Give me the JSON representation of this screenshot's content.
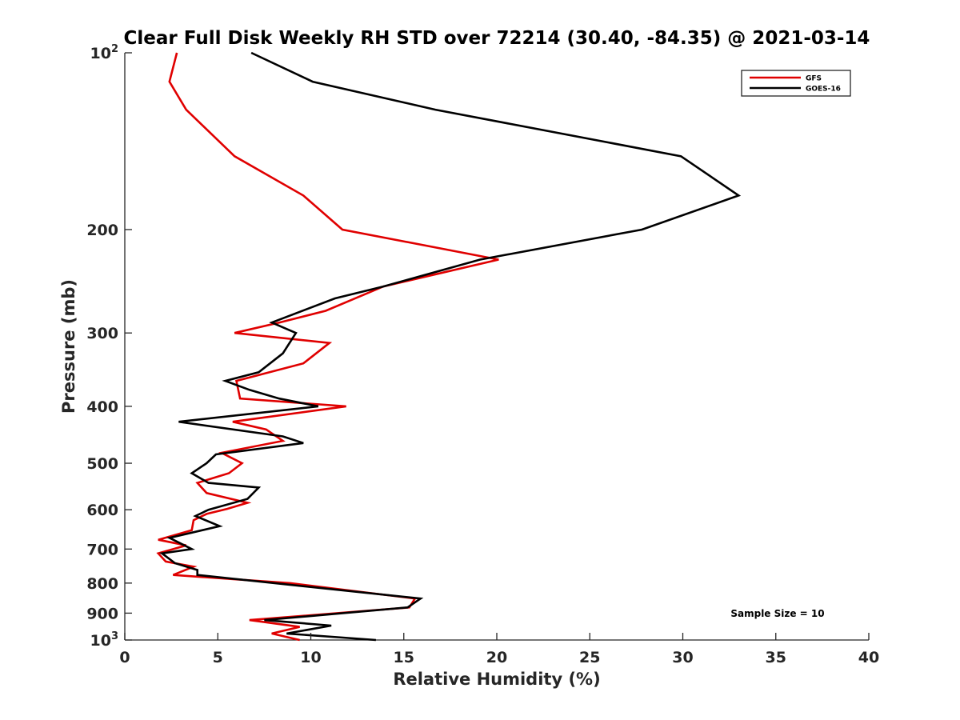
{
  "chart_data": {
    "type": "line",
    "title": "Clear Full Disk Weekly RH STD over 72214 (30.40, -84.35) @ 2021-03-14",
    "xlabel": "Relative Humidity (%)",
    "ylabel": "Pressure (mb)",
    "xlim": [
      0,
      40
    ],
    "ylim": [
      100,
      1000
    ],
    "yscale": "log",
    "yreversed": true,
    "xticks": [
      0,
      5,
      10,
      15,
      20,
      25,
      30,
      35,
      40
    ],
    "xtick_labels": [
      "0",
      "5",
      "10",
      "15",
      "20",
      "25",
      "30",
      "35",
      "40"
    ],
    "yticks": [
      {
        "value": 100,
        "label": "10",
        "sup": "2"
      },
      {
        "value": 200,
        "label": "200",
        "sup": ""
      },
      {
        "value": 300,
        "label": "300",
        "sup": ""
      },
      {
        "value": 400,
        "label": "400",
        "sup": ""
      },
      {
        "value": 500,
        "label": "500",
        "sup": ""
      },
      {
        "value": 600,
        "label": "600",
        "sup": ""
      },
      {
        "value": 700,
        "label": "700",
        "sup": ""
      },
      {
        "value": 800,
        "label": "800",
        "sup": ""
      },
      {
        "value": 900,
        "label": "900",
        "sup": ""
      },
      {
        "value": 1000,
        "label": "10",
        "sup": "3"
      }
    ],
    "legend_position": "top-right",
    "annotation": "Sample Size = 10",
    "series": [
      {
        "name": "GFS",
        "color": "#e00000",
        "points": [
          [
            2.8,
            100
          ],
          [
            2.4,
            112
          ],
          [
            3.3,
            125
          ],
          [
            5.9,
            150
          ],
          [
            9.6,
            175
          ],
          [
            11.7,
            200
          ],
          [
            20.1,
            225
          ],
          [
            13.9,
            250
          ],
          [
            10.8,
            275
          ],
          [
            8.3,
            288
          ],
          [
            5.9,
            300
          ],
          [
            11.0,
            312
          ],
          [
            9.6,
            338
          ],
          [
            6.0,
            362
          ],
          [
            6.2,
            388
          ],
          [
            11.9,
            400
          ],
          [
            5.8,
            425
          ],
          [
            7.6,
            438
          ],
          [
            8.5,
            458
          ],
          [
            5.2,
            480
          ],
          [
            6.3,
            500
          ],
          [
            5.6,
            520
          ],
          [
            3.9,
            540
          ],
          [
            4.4,
            562
          ],
          [
            6.6,
            584
          ],
          [
            5.5,
            598
          ],
          [
            4.4,
            610
          ],
          [
            3.7,
            625
          ],
          [
            3.6,
            650
          ],
          [
            1.8,
            675
          ],
          [
            3.3,
            690
          ],
          [
            1.8,
            712
          ],
          [
            2.2,
            735
          ],
          [
            3.7,
            750
          ],
          [
            2.6,
            775
          ],
          [
            8.9,
            800
          ],
          [
            15.6,
            850
          ],
          [
            15.3,
            880
          ],
          [
            6.7,
            925
          ],
          [
            9.4,
            950
          ],
          [
            7.9,
            975
          ],
          [
            9.4,
            1000
          ]
        ]
      },
      {
        "name": "GOES-16",
        "color": "#000000",
        "points": [
          [
            6.8,
            100
          ],
          [
            10.1,
            112
          ],
          [
            16.7,
            125
          ],
          [
            29.9,
            150
          ],
          [
            33.0,
            175
          ],
          [
            27.8,
            200
          ],
          [
            19.1,
            225
          ],
          [
            13.9,
            250
          ],
          [
            11.3,
            262
          ],
          [
            7.9,
            288
          ],
          [
            9.2,
            300
          ],
          [
            8.5,
            325
          ],
          [
            7.2,
            350
          ],
          [
            5.4,
            362
          ],
          [
            6.7,
            375
          ],
          [
            8.3,
            388
          ],
          [
            10.4,
            400
          ],
          [
            2.9,
            425
          ],
          [
            8.5,
            450
          ],
          [
            9.6,
            462
          ],
          [
            4.9,
            483
          ],
          [
            4.4,
            500
          ],
          [
            3.6,
            520
          ],
          [
            4.5,
            540
          ],
          [
            7.2,
            550
          ],
          [
            6.6,
            575
          ],
          [
            4.5,
            600
          ],
          [
            3.8,
            615
          ],
          [
            5.1,
            640
          ],
          [
            2.4,
            670
          ],
          [
            3.6,
            700
          ],
          [
            2.0,
            712
          ],
          [
            2.7,
            740
          ],
          [
            3.9,
            760
          ],
          [
            3.9,
            775
          ],
          [
            15.9,
            850
          ],
          [
            15.2,
            880
          ],
          [
            7.5,
            925
          ],
          [
            11.1,
            945
          ],
          [
            8.7,
            975
          ],
          [
            13.5,
            1000
          ]
        ]
      }
    ]
  }
}
